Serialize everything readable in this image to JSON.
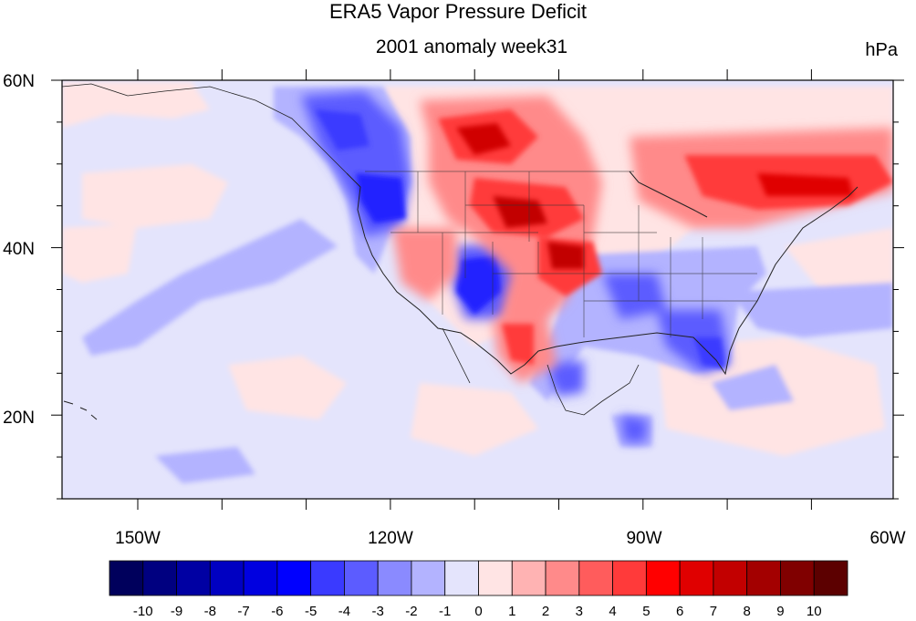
{
  "title": "ERA5 Vapor Pressure Deficit",
  "subtitle": "2001 anomaly week31",
  "units": "hPa",
  "axes": {
    "lat_ticks": [
      "60N",
      "40N",
      "20N"
    ],
    "lon_ticks": [
      "150W",
      "120W",
      "90W",
      "60W"
    ]
  },
  "colorbar": {
    "labels": [
      "-10",
      "-9",
      "-8",
      "-7",
      "-6",
      "-5",
      "-4",
      "-3",
      "-2",
      "-1",
      "0",
      "1",
      "2",
      "3",
      "4",
      "5",
      "6",
      "7",
      "8",
      "9",
      "10"
    ],
    "colors": [
      "#00005c",
      "#000080",
      "#0000a3",
      "#0000c2",
      "#0000e0",
      "#0000ff",
      "#3a3aff",
      "#5c5cff",
      "#8a8aff",
      "#b3b3ff",
      "#e4e4fc",
      "#ffe4e4",
      "#ffb3b3",
      "#ff8a8a",
      "#ff5c5c",
      "#ff3a3a",
      "#ff0000",
      "#e00000",
      "#c20000",
      "#a30000",
      "#800000",
      "#5c0000"
    ]
  },
  "map": {
    "extent": {
      "lon_min": -160,
      "lon_max": -60,
      "lat_min": 10,
      "lat_max": 60
    },
    "background_color": "#e4e4fc"
  }
}
